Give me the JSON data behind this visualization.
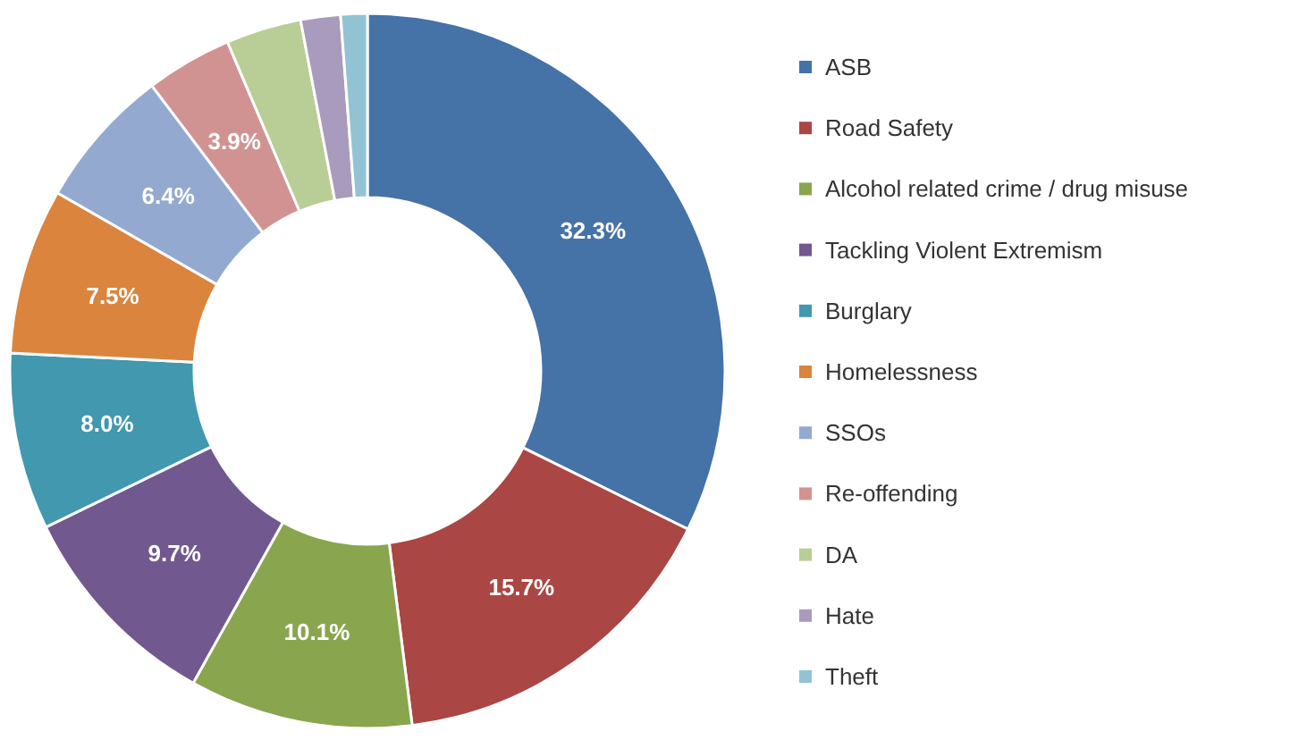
{
  "chart_data": {
    "type": "donut",
    "categories": [
      "ASB",
      "Road Safety",
      "Alcohol related crime / drug misuse",
      "Tackling Violent Extremism",
      "Burglary",
      "Homelessness",
      "SSOs",
      "Re-offending",
      "DA",
      "Hate",
      "Theft"
    ],
    "values": [
      32.3,
      15.7,
      10.1,
      9.7,
      8.0,
      7.5,
      6.4,
      3.9,
      3.4,
      1.8,
      1.2
    ],
    "value_labels": [
      "32.3%",
      "15.7%",
      "10.1%",
      "9.7%",
      "8.0%",
      "7.5%",
      "6.4%",
      "3.9%",
      null,
      null,
      null
    ],
    "colors": [
      "#4572a7",
      "#aa4643",
      "#89a54e",
      "#71588f",
      "#4198af",
      "#db843d",
      "#93a9cf",
      "#d19392",
      "#b9cd96",
      "#a99bbd",
      "#92c3d4"
    ],
    "legend": "right"
  }
}
